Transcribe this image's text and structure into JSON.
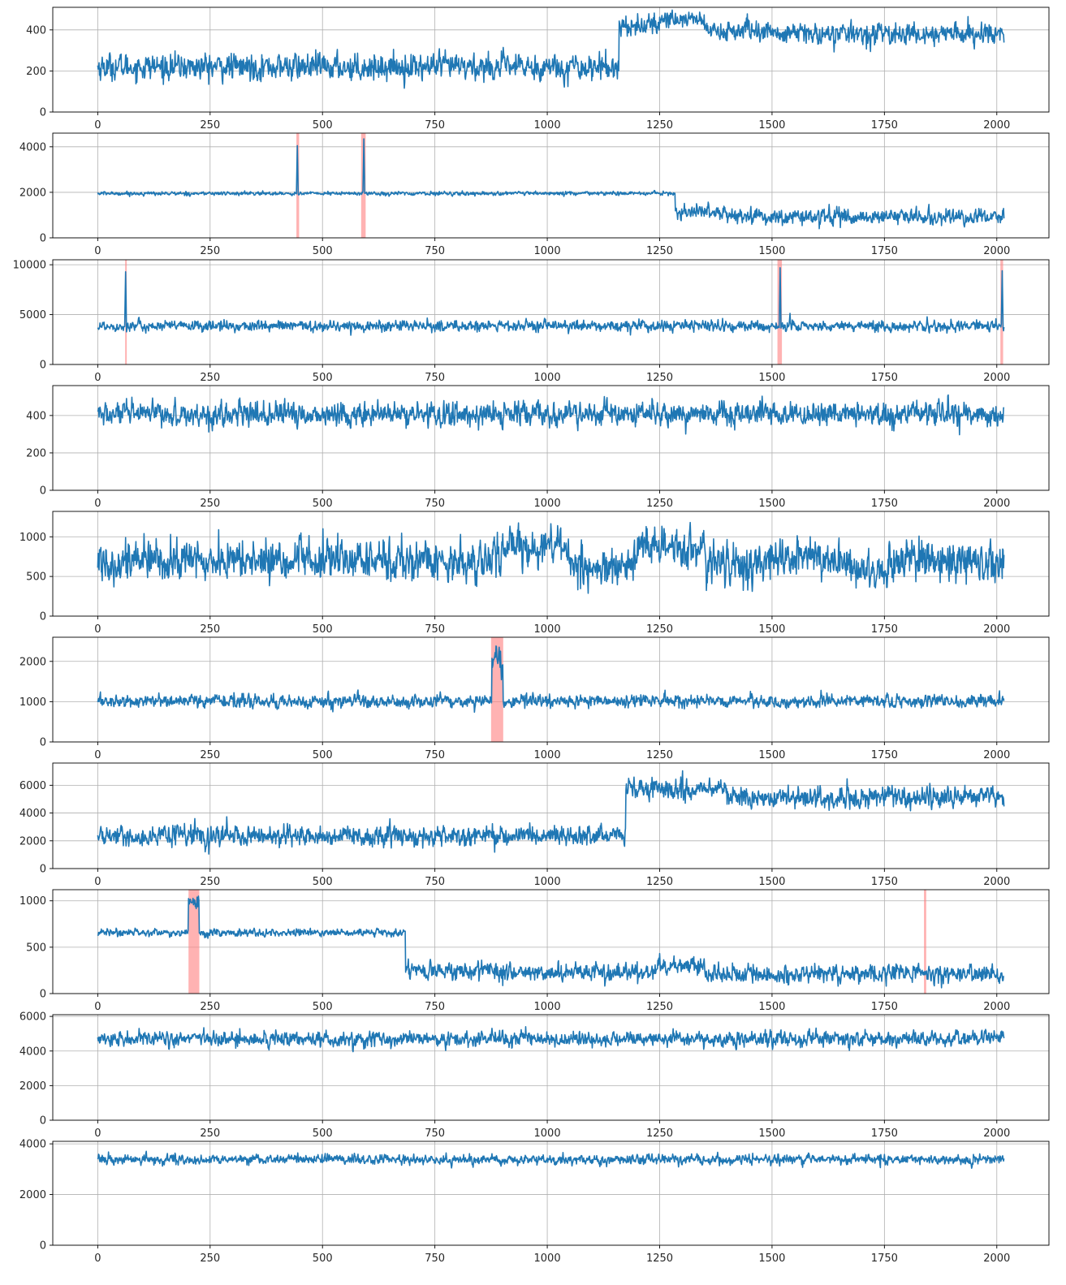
{
  "figure": {
    "background": "#ffffff",
    "line_color": "#1f77b4",
    "span_color": "#ff7f7f",
    "grid_color": "#b0b0b0"
  },
  "chart_data": [
    {
      "type": "line",
      "x_range": [
        0,
        2016
      ],
      "xlim": [
        -100,
        2116
      ],
      "ylim": [
        0,
        510
      ],
      "yticks": [
        0,
        200,
        400
      ],
      "xticks": [
        0,
        250,
        500,
        750,
        1000,
        1250,
        1500,
        1750,
        2000
      ],
      "grid": true,
      "segments": [
        {
          "x": [
            0,
            1160
          ],
          "mean": 220,
          "noise": 35
        },
        {
          "x": [
            1160,
            1250
          ],
          "mean": 420,
          "noise": 28
        },
        {
          "x": [
            1250,
            1350
          ],
          "mean": 455,
          "noise": 25
        },
        {
          "x": [
            1350,
            1500
          ],
          "mean": 395,
          "noise": 28
        },
        {
          "x": [
            1500,
            2016
          ],
          "mean": 380,
          "noise": 28
        }
      ],
      "spikes": [],
      "anomaly_spans": []
    },
    {
      "type": "line",
      "x_range": [
        0,
        2016
      ],
      "xlim": [
        -100,
        2116
      ],
      "ylim": [
        0,
        4600
      ],
      "yticks": [
        0,
        2000,
        4000
      ],
      "xticks": [
        0,
        250,
        500,
        750,
        1000,
        1250,
        1500,
        1750,
        2000
      ],
      "grid": true,
      "segments": [
        {
          "x": [
            0,
            1285
          ],
          "mean": 1950,
          "noise": 45
        },
        {
          "x": [
            1285,
            1400
          ],
          "mean": 1150,
          "noise": 170
        },
        {
          "x": [
            1400,
            2016
          ],
          "mean": 920,
          "noise": 190
        }
      ],
      "spikes": [
        {
          "x": 444,
          "value": 4050
        },
        {
          "x": 592,
          "value": 4350
        }
      ],
      "anomaly_spans": [
        [
          442,
          448
        ],
        [
          586,
          596
        ]
      ]
    },
    {
      "type": "line",
      "x_range": [
        0,
        2016
      ],
      "xlim": [
        -100,
        2116
      ],
      "ylim": [
        0,
        10500
      ],
      "yticks": [
        0,
        5000,
        10000
      ],
      "xticks": [
        0,
        250,
        500,
        750,
        1000,
        1250,
        1500,
        1750,
        2000
      ],
      "grid": true,
      "segments": [
        {
          "x": [
            0,
            2016
          ],
          "mean": 3850,
          "noise": 300
        }
      ],
      "spikes": [
        {
          "x": 62,
          "value": 9300
        },
        {
          "x": 1518,
          "value": 9700
        },
        {
          "x": 2012,
          "value": 9400
        }
      ],
      "anomaly_spans": [
        [
          61,
          64
        ],
        [
          1512,
          1522
        ],
        [
          2008,
          2014
        ]
      ]
    },
    {
      "type": "line",
      "x_range": [
        0,
        2016
      ],
      "xlim": [
        -100,
        2116
      ],
      "ylim": [
        0,
        560
      ],
      "yticks": [
        0,
        200,
        400
      ],
      "xticks": [
        0,
        250,
        500,
        750,
        1000,
        1250,
        1500,
        1750,
        2000
      ],
      "grid": true,
      "segments": [
        {
          "x": [
            0,
            2016
          ],
          "mean": 405,
          "noise": 35
        }
      ],
      "spikes": [],
      "anomaly_spans": []
    },
    {
      "type": "line",
      "x_range": [
        0,
        2016
      ],
      "xlim": [
        -100,
        2116
      ],
      "ylim": [
        0,
        1320
      ],
      "yticks": [
        0,
        500,
        1000
      ],
      "xticks": [
        0,
        250,
        500,
        750,
        1000,
        1250,
        1500,
        1750,
        2000
      ],
      "grid": true,
      "segments": [
        {
          "x": [
            0,
            900
          ],
          "mean": 700,
          "noise": 140
        },
        {
          "x": [
            900,
            1050
          ],
          "mean": 880,
          "noise": 130
        },
        {
          "x": [
            1050,
            1200
          ],
          "mean": 600,
          "noise": 140
        },
        {
          "x": [
            1200,
            1350
          ],
          "mean": 860,
          "noise": 130
        },
        {
          "x": [
            1350,
            1500
          ],
          "mean": 650,
          "noise": 150
        },
        {
          "x": [
            1500,
            1650
          ],
          "mean": 740,
          "noise": 130
        },
        {
          "x": [
            1650,
            1760
          ],
          "mean": 580,
          "noise": 130
        },
        {
          "x": [
            1760,
            2016
          ],
          "mean": 700,
          "noise": 140
        }
      ],
      "spikes": [],
      "anomaly_spans": []
    },
    {
      "type": "line",
      "x_range": [
        0,
        2016
      ],
      "xlim": [
        -100,
        2116
      ],
      "ylim": [
        0,
        2600
      ],
      "yticks": [
        0,
        1000,
        2000
      ],
      "xticks": [
        0,
        250,
        500,
        750,
        1000,
        1250,
        1500,
        1750,
        2000
      ],
      "grid": true,
      "segments": [
        {
          "x": [
            0,
            877
          ],
          "mean": 1010,
          "noise": 85
        },
        {
          "x": [
            877,
            902
          ],
          "mean": 2150,
          "noise": 170
        },
        {
          "x": [
            902,
            2016
          ],
          "mean": 1010,
          "noise": 85
        }
      ],
      "spikes": [],
      "anomaly_spans": [
        [
          875,
          902
        ]
      ]
    },
    {
      "type": "line",
      "x_range": [
        0,
        2016
      ],
      "xlim": [
        -100,
        2116
      ],
      "ylim": [
        0,
        7600
      ],
      "yticks": [
        0,
        2000,
        4000,
        6000
      ],
      "xticks": [
        0,
        250,
        500,
        750,
        1000,
        1250,
        1500,
        1750,
        2000
      ],
      "grid": true,
      "segments": [
        {
          "x": [
            0,
            1175
          ],
          "mean": 2350,
          "noise": 380
        },
        {
          "x": [
            1175,
            1400
          ],
          "mean": 5700,
          "noise": 420
        },
        {
          "x": [
            1400,
            2016
          ],
          "mean": 5150,
          "noise": 420
        }
      ],
      "spikes": [],
      "anomaly_spans": []
    },
    {
      "type": "line",
      "x_range": [
        0,
        2016
      ],
      "xlim": [
        -100,
        2116
      ],
      "ylim": [
        0,
        1120
      ],
      "yticks": [
        0,
        500,
        1000
      ],
      "xticks": [
        0,
        250,
        500,
        750,
        1000,
        1250,
        1500,
        1750,
        2000
      ],
      "grid": true,
      "segments": [
        {
          "x": [
            0,
            202
          ],
          "mean": 660,
          "noise": 22
        },
        {
          "x": [
            202,
            226
          ],
          "mean": 960,
          "noise": 40
        },
        {
          "x": [
            226,
            685
          ],
          "mean": 655,
          "noise": 22
        },
        {
          "x": [
            685,
            880
          ],
          "mean": 260,
          "noise": 55
        },
        {
          "x": [
            880,
            1250
          ],
          "mean": 230,
          "noise": 55
        },
        {
          "x": [
            1250,
            1350
          ],
          "mean": 300,
          "noise": 55
        },
        {
          "x": [
            1350,
            2016
          ],
          "mean": 210,
          "noise": 55
        }
      ],
      "spikes": [],
      "anomaly_spans": [
        [
          202,
          226
        ],
        [
          1838,
          1843
        ]
      ]
    },
    {
      "type": "line",
      "x_range": [
        0,
        2016
      ],
      "xlim": [
        -100,
        2116
      ],
      "ylim": [
        0,
        6100
      ],
      "yticks": [
        0,
        2000,
        4000,
        6000
      ],
      "xticks": [
        0,
        250,
        500,
        750,
        1000,
        1250,
        1500,
        1750,
        2000
      ],
      "grid": true,
      "segments": [
        {
          "x": [
            0,
            2016
          ],
          "mean": 4700,
          "noise": 230
        }
      ],
      "spikes": [],
      "anomaly_spans": []
    },
    {
      "type": "line",
      "x_range": [
        0,
        2016
      ],
      "xlim": [
        -100,
        2116
      ],
      "ylim": [
        0,
        4100
      ],
      "yticks": [
        0,
        2000,
        4000
      ],
      "xticks": [
        0,
        250,
        500,
        750,
        1000,
        1250,
        1500,
        1750,
        2000
      ],
      "grid": true,
      "segments": [
        {
          "x": [
            0,
            2016
          ],
          "mean": 3380,
          "noise": 100
        }
      ],
      "spikes": [],
      "anomaly_spans": []
    }
  ]
}
